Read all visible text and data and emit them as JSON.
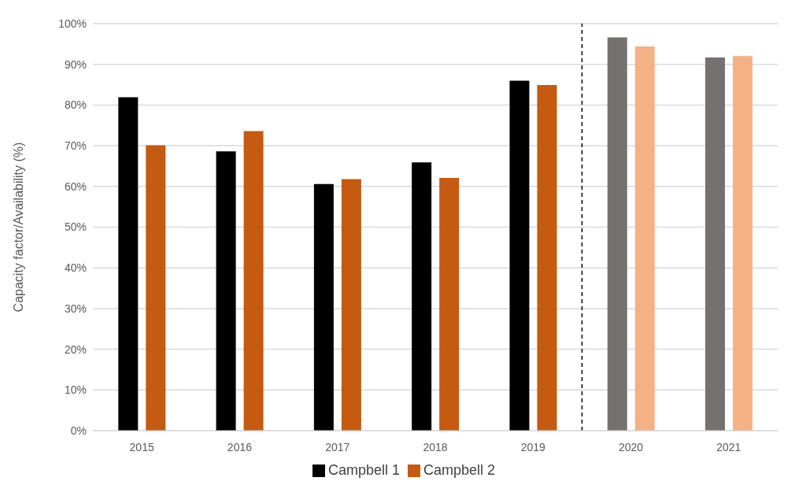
{
  "chart_data": {
    "type": "bar",
    "ylabel": "Capacity factor/Availability (%)",
    "categories": [
      "2015",
      "2016",
      "2017",
      "2018",
      "2019",
      "2020",
      "2021"
    ],
    "series": [
      {
        "name": "Campbell 1",
        "color": "#000000",
        "colors": [
          "#000000",
          "#000000",
          "#000000",
          "#000000",
          "#000000",
          "#767171",
          "#767171"
        ],
        "values": [
          81.9,
          68.6,
          60.6,
          65.9,
          86.0,
          96.6,
          91.7
        ]
      },
      {
        "name": "Campbell 2",
        "color": "#c55a11",
        "colors": [
          "#c55a11",
          "#c55a11",
          "#c55a11",
          "#c55a11",
          "#c55a11",
          "#f4b183",
          "#f4b183"
        ],
        "values": [
          70.1,
          73.6,
          61.8,
          62.1,
          84.9,
          94.4,
          92.0
        ]
      }
    ],
    "ylim": [
      0,
      100
    ],
    "yticks": [
      {
        "value": 0,
        "label": "0%"
      },
      {
        "value": 10,
        "label": "10%"
      },
      {
        "value": 20,
        "label": "20%"
      },
      {
        "value": 30,
        "label": "30%"
      },
      {
        "value": 40,
        "label": "40%"
      },
      {
        "value": 50,
        "label": "50%"
      },
      {
        "value": 60,
        "label": "60%"
      },
      {
        "value": 70,
        "label": "70%"
      },
      {
        "value": 80,
        "label": "80%"
      },
      {
        "value": 90,
        "label": "90%"
      },
      {
        "value": 100,
        "label": "100%"
      }
    ],
    "grid": "y",
    "legend": "bottom",
    "ref_lines": [
      {
        "axis": "x",
        "value": "2020",
        "color": "#000000",
        "line_style": "dashed"
      }
    ]
  }
}
